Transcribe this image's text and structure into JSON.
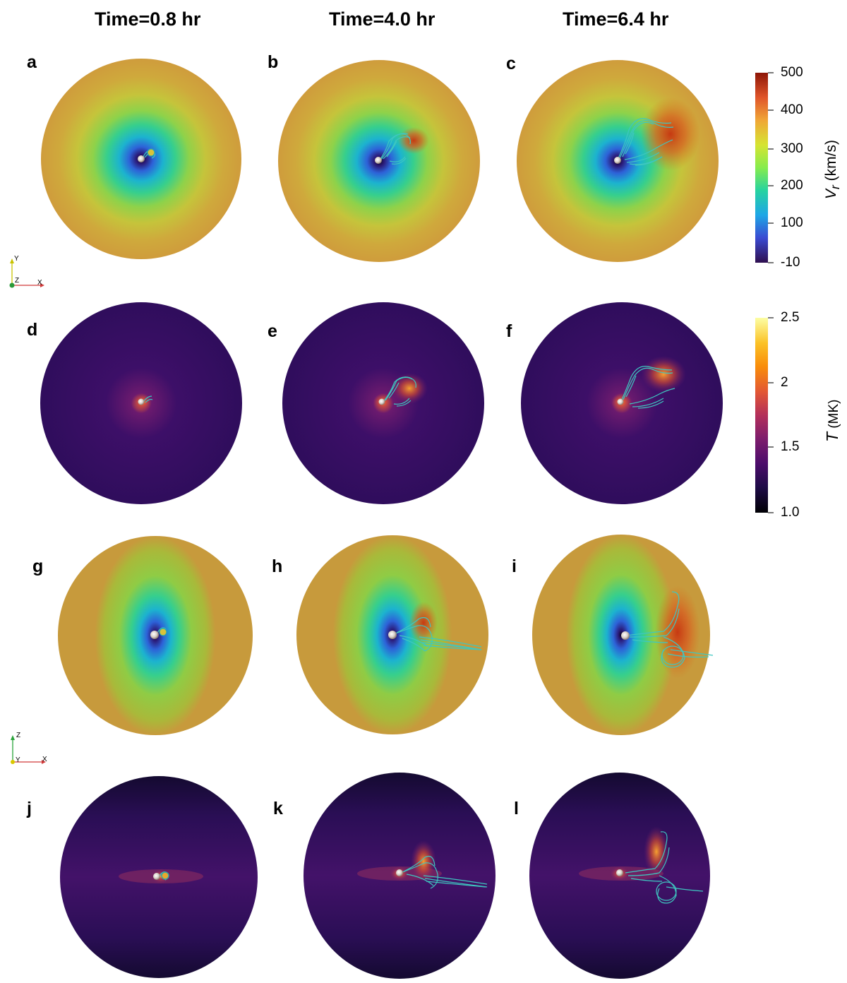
{
  "columns": [
    {
      "id": "c1",
      "title": "Time=0.8 hr"
    },
    {
      "id": "c2",
      "title": "Time=4.0 hr"
    },
    {
      "id": "c3",
      "title": "Time=6.4 hr"
    }
  ],
  "panels": [
    {
      "letter": "a",
      "field": "vr",
      "view": "xy",
      "time": "c1"
    },
    {
      "letter": "b",
      "field": "vr",
      "view": "xy",
      "time": "c2"
    },
    {
      "letter": "c",
      "field": "vr",
      "view": "xy",
      "time": "c3"
    },
    {
      "letter": "d",
      "field": "temp",
      "view": "xy",
      "time": "c1"
    },
    {
      "letter": "e",
      "field": "temp",
      "view": "xy",
      "time": "c2"
    },
    {
      "letter": "f",
      "field": "temp",
      "view": "xy",
      "time": "c3"
    },
    {
      "letter": "g",
      "field": "vr",
      "view": "xz",
      "time": "c1"
    },
    {
      "letter": "h",
      "field": "vr",
      "view": "xz",
      "time": "c2"
    },
    {
      "letter": "i",
      "field": "vr",
      "view": "xz",
      "time": "c3"
    },
    {
      "letter": "j",
      "field": "temp",
      "view": "xz",
      "time": "c1"
    },
    {
      "letter": "k",
      "field": "temp",
      "view": "xz",
      "time": "c2"
    },
    {
      "letter": "l",
      "field": "temp",
      "view": "xz",
      "time": "c3"
    }
  ],
  "colorbars": {
    "vr": {
      "label_main": "V",
      "label_sub": "r",
      "label_unit": " (km/s)",
      "ticks": [
        "500",
        "400",
        "300",
        "200",
        "100",
        "-10"
      ],
      "colors": [
        "#2f0f4f",
        "#3a4ad2",
        "#1ea6e6",
        "#26d3a0",
        "#86ec4d",
        "#d6e432",
        "#f0a636",
        "#e0552a",
        "#8d1506"
      ]
    },
    "temp": {
      "label_main": "T",
      "label_unit": " (MK)",
      "ticks": [
        "2.5",
        "2",
        "1.5",
        "1.0"
      ],
      "colors": [
        "#000004",
        "#1e0b47",
        "#4b0c6b",
        "#7e1d6c",
        "#b32f5a",
        "#e25734",
        "#f98d0a",
        "#fbc226",
        "#fcfea4"
      ]
    }
  },
  "triads": {
    "xy": {
      "up": "Y",
      "out": "Z",
      "right": "X"
    },
    "xz": {
      "up": "Z",
      "out": "Y",
      "right": "X"
    }
  }
}
